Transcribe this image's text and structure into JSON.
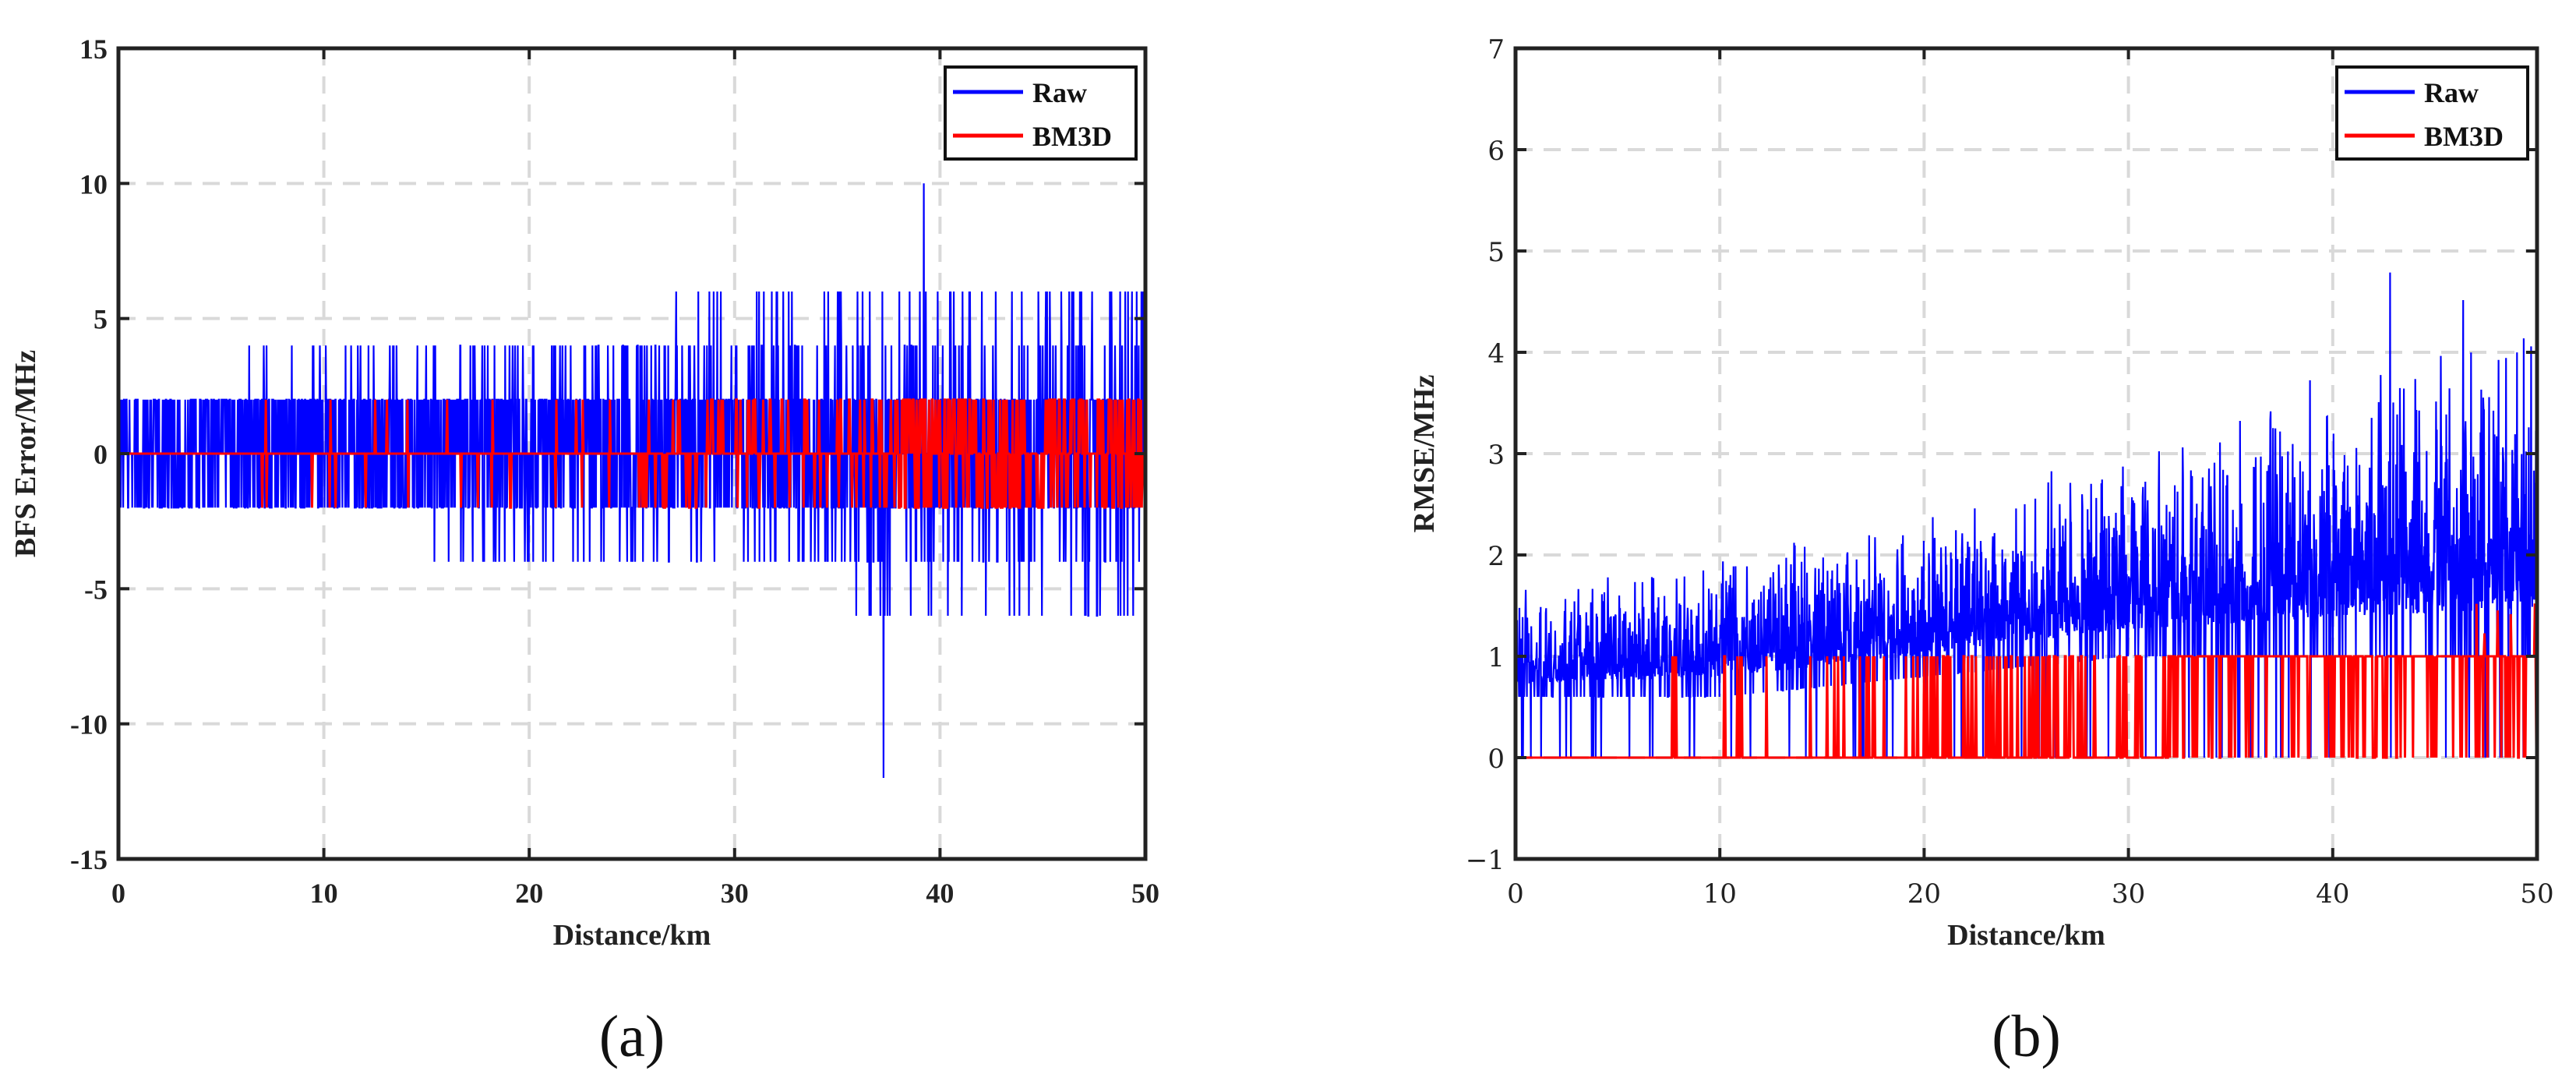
{
  "chart_data": [
    {
      "type": "line",
      "panel": "a",
      "caption": "(a)",
      "xlabel": "Distance/km",
      "ylabel": "BFS Error/MHz",
      "xlim": [
        0,
        50
      ],
      "ylim": [
        -15,
        15
      ],
      "xticks": [
        0,
        10,
        20,
        30,
        40,
        50
      ],
      "xtick_labels": [
        "0",
        "10",
        "20",
        "30",
        "40",
        "50"
      ],
      "yticks": [
        -15,
        -10,
        -5,
        0,
        5,
        10,
        15
      ],
      "ytick_labels": [
        "-15",
        "-10",
        "-5",
        "0",
        "5",
        "10",
        "15"
      ],
      "grid": true,
      "legend_position": "top-right",
      "legend": [
        {
          "name": "Raw",
          "color": "#0000ff"
        },
        {
          "name": "BM3D",
          "color": "#ff0000"
        }
      ],
      "series": [
        {
          "name": "Raw",
          "color": "#0000ff",
          "description_band": {
            "x": [
              0,
              10,
              20,
              30,
              40,
              50
            ],
            "typical_low": [
              -2,
              -2,
              -4,
              -4,
              -6,
              -6
            ],
            "typical_high": [
              2,
              4,
              4,
              6,
              6,
              6
            ]
          },
          "extremes": {
            "max": 10,
            "min": -12
          }
        },
        {
          "name": "BM3D",
          "color": "#ff0000",
          "levels": [
            -2,
            0,
            2
          ],
          "spikes_x": [
            7.2,
            10.3,
            12.5,
            14.1,
            16.0,
            18.2,
            19.1,
            21.3,
            22.6,
            23.9,
            25.5,
            26.6,
            27.8,
            28.9,
            30.1,
            31.2,
            32.3,
            33.4,
            34.5,
            35.6,
            36.7,
            37.8
          ]
        }
      ]
    },
    {
      "type": "line",
      "panel": "b",
      "caption": "(b)",
      "xlabel": "Distance/km",
      "ylabel": "RMSE/MHz",
      "xlim": [
        0,
        50
      ],
      "ylim": [
        -1,
        7
      ],
      "xticks": [
        0,
        10,
        20,
        30,
        40,
        50
      ],
      "xtick_labels": [
        "0",
        "10",
        "20",
        "30",
        "40",
        "50"
      ],
      "yticks": [
        -1,
        0,
        1,
        2,
        3,
        4,
        5,
        6,
        7
      ],
      "ytick_labels": [
        "−1",
        "0",
        "1",
        "2",
        "3",
        "4",
        "5",
        "6",
        "7"
      ],
      "grid": true,
      "legend_position": "top-right",
      "legend": [
        {
          "name": "Raw",
          "color": "#0000ff"
        },
        {
          "name": "BM3D",
          "color": "#ff0000"
        }
      ],
      "series": [
        {
          "name": "Raw",
          "color": "#0000ff",
          "description_band": {
            "x": [
              0,
              10,
              20,
              30,
              40,
              50
            ],
            "typical_low": [
              0.6,
              0.6,
              0.8,
              1.0,
              1.0,
              1.0
            ],
            "typical_high": [
              1.5,
              1.9,
              2.3,
              2.8,
              3.5,
              4.2
            ]
          },
          "extremes": {
            "max": 5.1,
            "min": 0
          }
        },
        {
          "name": "BM3D",
          "color": "#ff0000",
          "levels": [
            0,
            1
          ],
          "extremes": {
            "max": 1.6,
            "min": 0
          }
        }
      ]
    }
  ]
}
